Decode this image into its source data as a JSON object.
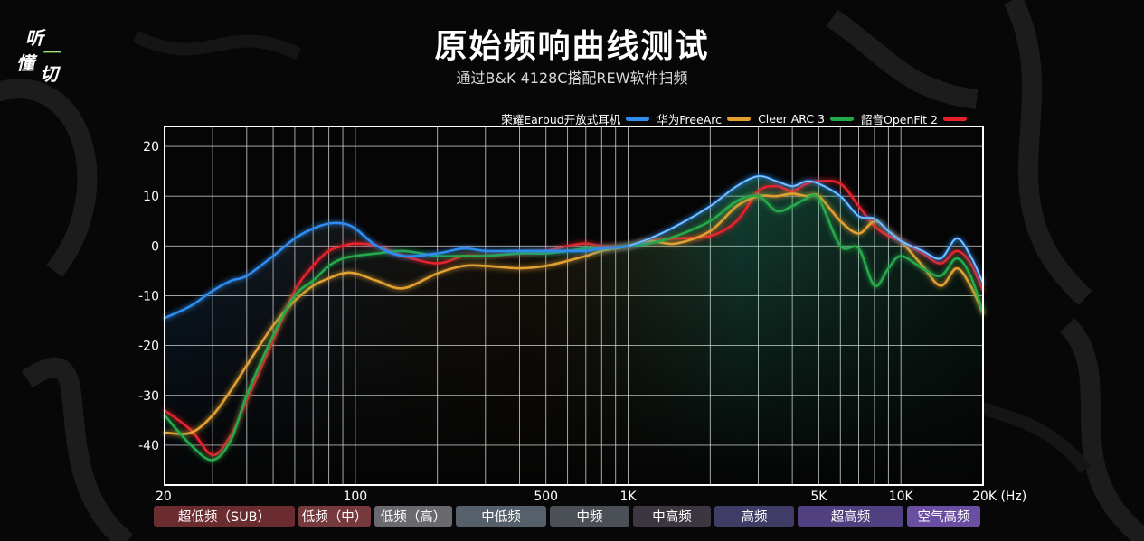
{
  "logo": {
    "line1": "听",
    "line2": "懂",
    "line3": "一",
    "line4": "切"
  },
  "title": "原始频响曲线测试",
  "subtitle": "通过B&K 4128C搭配REW软件扫频",
  "chart_data": {
    "type": "line",
    "x_scale": "log",
    "xlim": [
      20,
      20000
    ],
    "ylim": [
      -48,
      24
    ],
    "grid": true,
    "legend_position": "top-right",
    "y_ticks": [
      20,
      10,
      0,
      -10,
      -20,
      -30,
      -40
    ],
    "y_tick_labels": [
      "20",
      "10",
      "0",
      "-10",
      "-20",
      "-30",
      "-40"
    ],
    "x_ticks": [
      20,
      100,
      500,
      1000,
      5000,
      10000,
      20000
    ],
    "x_tick_labels": [
      "20",
      "100",
      "500",
      "1K",
      "5K",
      "10K",
      "20K (Hz)"
    ],
    "series": [
      {
        "name": "荣耀Earbud开放式耳机",
        "color": "#2f8cf0",
        "x": [
          20,
          25,
          30,
          35,
          40,
          50,
          60,
          70,
          80,
          90,
          100,
          120,
          150,
          200,
          250,
          300,
          400,
          500,
          600,
          700,
          800,
          1000,
          1200,
          1500,
          2000,
          2500,
          3000,
          3500,
          4000,
          4500,
          5000,
          6000,
          7000,
          8000,
          9000,
          10000,
          12000,
          14000,
          16000,
          18000,
          20000
        ],
        "y": [
          -14.5,
          -12,
          -9,
          -7,
          -6,
          -2,
          1.5,
          3.5,
          4.5,
          4.5,
          3.5,
          0,
          -2,
          -1.5,
          -0.5,
          -1,
          -1,
          -1,
          -1,
          -1,
          -0.5,
          0,
          1.5,
          4,
          8,
          12,
          14,
          13,
          12,
          13,
          12.5,
          10,
          6,
          5.5,
          3,
          1,
          -1,
          -2.5,
          1.5,
          -2,
          -7.5
        ]
      },
      {
        "name": "华为FreeArc",
        "color": "#e3a030",
        "x": [
          20,
          25,
          30,
          35,
          40,
          50,
          60,
          70,
          80,
          90,
          100,
          120,
          150,
          200,
          250,
          300,
          400,
          500,
          600,
          700,
          800,
          1000,
          1200,
          1500,
          2000,
          2500,
          3000,
          3500,
          4000,
          4500,
          5000,
          6000,
          7000,
          8000,
          9000,
          10000,
          12000,
          14000,
          16000,
          18000,
          20000
        ],
        "y": [
          -37.5,
          -37.5,
          -34,
          -29,
          -24,
          -16,
          -11,
          -8,
          -6.5,
          -5.5,
          -5.5,
          -7,
          -8.5,
          -5.5,
          -4,
          -4,
          -4.5,
          -4,
          -3,
          -2,
          -1,
          0,
          1,
          0.5,
          3,
          8,
          10,
          10,
          10.5,
          10,
          10,
          5,
          2.5,
          5,
          3,
          1,
          -4,
          -8,
          -4.5,
          -8,
          -13.5
        ]
      },
      {
        "name": "Cleer ARC 3",
        "color": "#25a84c",
        "x": [
          20,
          25,
          30,
          35,
          40,
          50,
          60,
          70,
          80,
          90,
          100,
          120,
          150,
          200,
          250,
          300,
          400,
          500,
          600,
          700,
          800,
          1000,
          1200,
          1500,
          2000,
          2500,
          3000,
          3500,
          4000,
          4500,
          5000,
          6000,
          7000,
          8000,
          9000,
          10000,
          12000,
          14000,
          16000,
          18000,
          20000
        ],
        "y": [
          -34,
          -40,
          -43,
          -39,
          -30,
          -18,
          -10,
          -7,
          -4,
          -2.5,
          -2,
          -1.5,
          -1,
          -2,
          -2,
          -2,
          -1.5,
          -1.5,
          -1,
          -0.5,
          -0.5,
          0,
          0.5,
          2,
          5,
          9,
          10,
          7,
          8,
          9.5,
          9.5,
          0,
          -0.5,
          -8,
          -4.5,
          -2,
          -4.5,
          -6,
          -2.5,
          -6,
          -13.5
        ]
      },
      {
        "name": "韶音OpenFit 2",
        "color": "#e8212b",
        "x": [
          20,
          25,
          30,
          35,
          40,
          50,
          60,
          70,
          80,
          90,
          100,
          120,
          150,
          200,
          250,
          300,
          400,
          500,
          600,
          700,
          800,
          1000,
          1200,
          1500,
          2000,
          2500,
          3000,
          3500,
          4000,
          4500,
          5000,
          6000,
          7000,
          8000,
          9000,
          10000,
          12000,
          14000,
          16000,
          18000,
          20000
        ],
        "y": [
          -33,
          -37,
          -42,
          -38,
          -31,
          -19,
          -9,
          -4,
          -1,
          0,
          0.5,
          0,
          -2,
          -3.5,
          -2,
          -2,
          -1.5,
          -1,
          0,
          0.5,
          0,
          0,
          1,
          1.5,
          2,
          5,
          11,
          12,
          11,
          12.5,
          13,
          12.5,
          8,
          4,
          2,
          1,
          -1.5,
          -3.5,
          -1,
          -3.5,
          -9
        ]
      }
    ]
  },
  "bands": [
    {
      "label": "超低频（SUB）",
      "color": "#6b2c30"
    },
    {
      "label": "低频（中）",
      "color": "#76393d"
    },
    {
      "label": "低频（高）",
      "color": "#6a6a6e"
    },
    {
      "label": "中低频",
      "color": "#56606a"
    },
    {
      "label": "中频",
      "color": "#4b4f56"
    },
    {
      "label": "中高频",
      "color": "#3d3540"
    },
    {
      "label": "高频",
      "color": "#3f3d66"
    },
    {
      "label": "超高频",
      "color": "#514080"
    },
    {
      "label": "空气高频",
      "color": "#6a4ea2"
    }
  ]
}
